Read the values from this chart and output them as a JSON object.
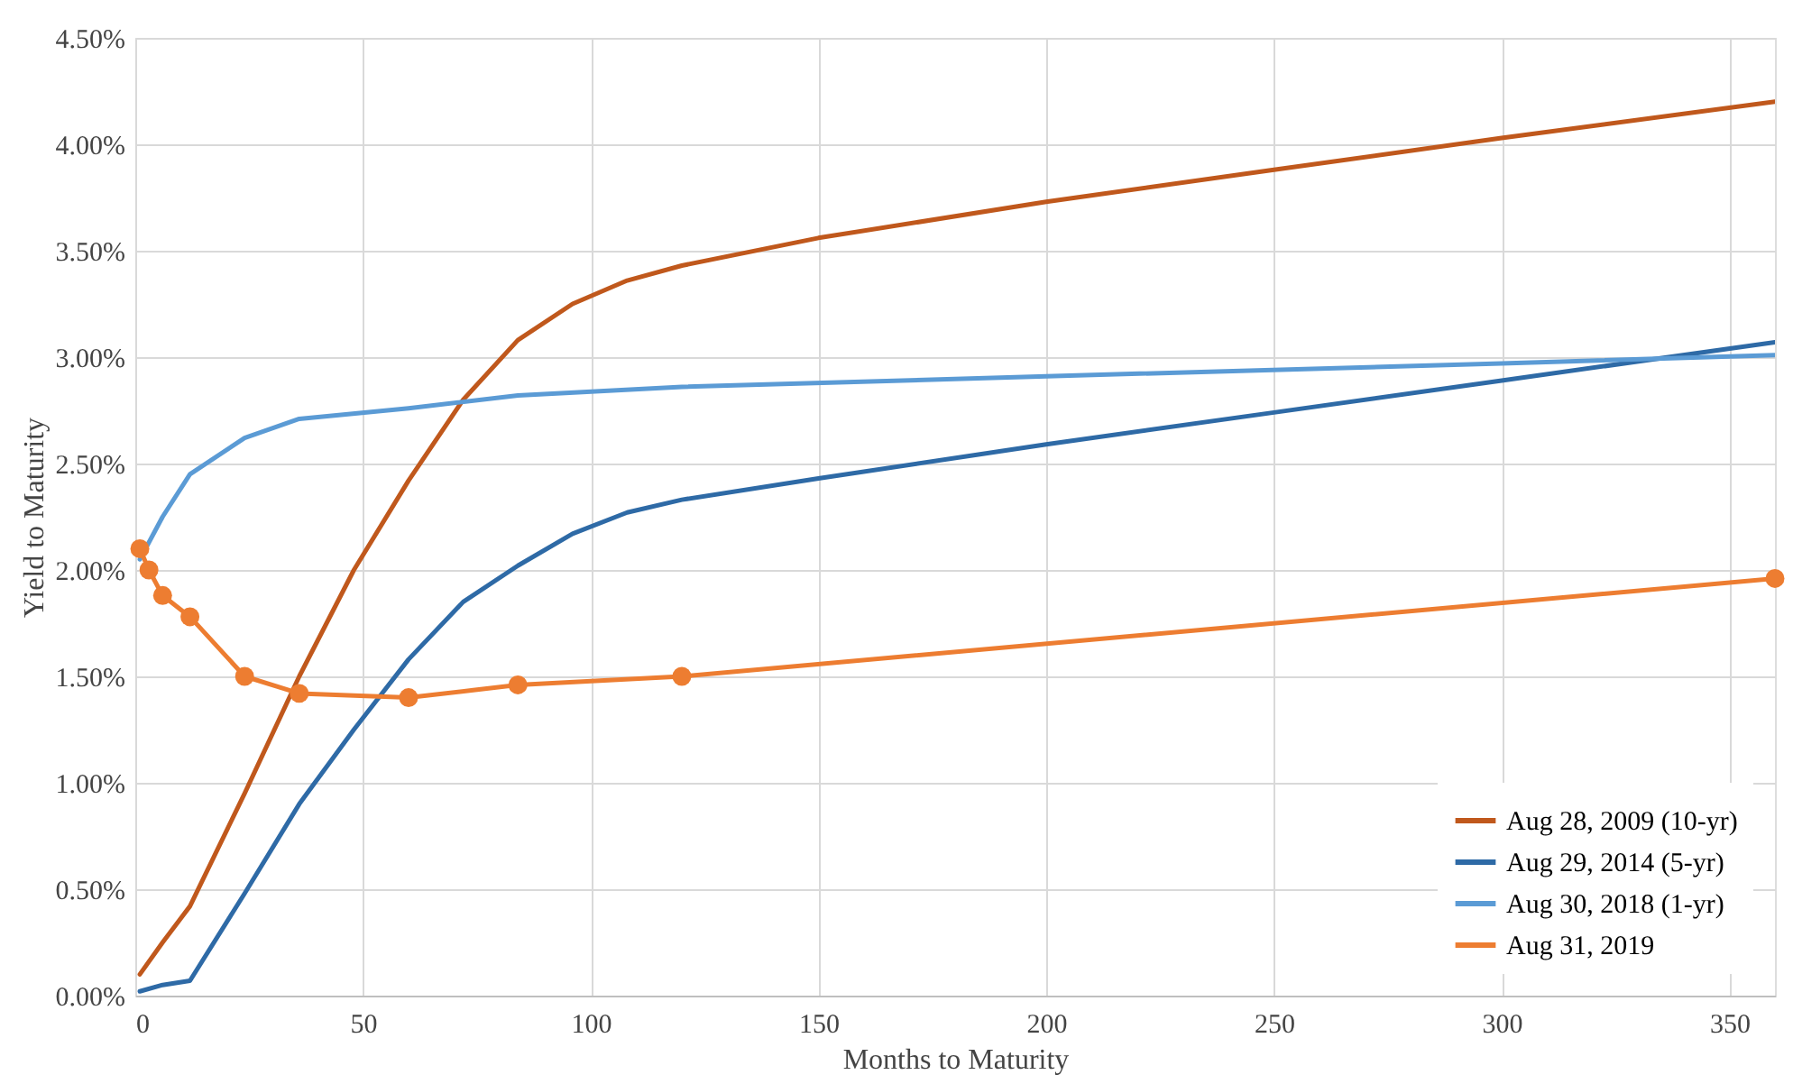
{
  "chart_data": {
    "type": "line",
    "xlabel": "Months to Maturity",
    "ylabel": "Yield to Maturity",
    "xlim": [
      0,
      360
    ],
    "xticks": [
      0,
      50,
      100,
      150,
      200,
      250,
      300,
      350
    ],
    "ylim": [
      0,
      4.5
    ],
    "yticks": [
      {
        "value": 0,
        "label": "0.00%"
      },
      {
        "value": 0.5,
        "label": "0.50%"
      },
      {
        "value": 1,
        "label": "1.00%"
      },
      {
        "value": 1.5,
        "label": "1.50%"
      },
      {
        "value": 2,
        "label": "2.00%"
      },
      {
        "value": 2.5,
        "label": "2.50%"
      },
      {
        "value": 3,
        "label": "3.00%"
      },
      {
        "value": 3.5,
        "label": "3.50%"
      },
      {
        "value": 4,
        "label": "4.00%"
      },
      {
        "value": 4.5,
        "label": "4.50%"
      }
    ],
    "grid": true,
    "legend": "bottom right",
    "line_style": "solid",
    "series": [
      {
        "name": "Aug 28, 2009 (10-yr)",
        "color": "#c0581c",
        "marker": "none",
        "x": [
          1,
          6,
          12,
          24,
          36,
          48,
          60,
          72,
          84,
          96,
          108,
          120,
          150,
          200,
          250,
          300,
          360
        ],
        "values": [
          0.1,
          0.25,
          0.42,
          0.95,
          1.5,
          2.0,
          2.42,
          2.8,
          3.08,
          3.25,
          3.36,
          3.43,
          3.56,
          3.73,
          3.88,
          4.03,
          4.2
        ]
      },
      {
        "name": "Aug 29, 2014 (5-yr)",
        "color": "#2e6aa6",
        "marker": "none",
        "x": [
          1,
          6,
          12,
          24,
          36,
          48,
          60,
          72,
          84,
          96,
          108,
          120,
          150,
          200,
          250,
          300,
          360
        ],
        "values": [
          0.02,
          0.05,
          0.07,
          0.48,
          0.9,
          1.25,
          1.58,
          1.85,
          2.02,
          2.17,
          2.27,
          2.33,
          2.43,
          2.59,
          2.74,
          2.89,
          3.07
        ]
      },
      {
        "name": "Aug 30, 2018 (1-yr)",
        "color": "#5b9bd5",
        "marker": "none",
        "x": [
          1,
          6,
          12,
          24,
          36,
          60,
          84,
          120,
          200,
          300,
          360
        ],
        "values": [
          2.05,
          2.25,
          2.45,
          2.62,
          2.71,
          2.76,
          2.82,
          2.86,
          2.91,
          2.97,
          3.01
        ]
      },
      {
        "name": "Aug 31, 2019",
        "color": "#ed7d31",
        "marker": "circle",
        "x": [
          1,
          3,
          6,
          12,
          24,
          36,
          60,
          84,
          120,
          360
        ],
        "values": [
          2.1,
          2.0,
          1.88,
          1.78,
          1.5,
          1.42,
          1.4,
          1.46,
          1.5,
          1.96
        ]
      }
    ]
  }
}
